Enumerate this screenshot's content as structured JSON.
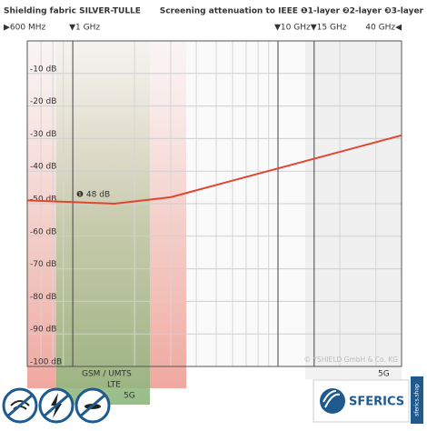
{
  "chart_data": {
    "type": "line",
    "title": "Shielding fabric SILVER-TULLE",
    "subtitle": "Screening attenuation to IEEE ❶1-layer ❷2-layer ❸3-layer",
    "x": [
      0.6,
      1.6,
      3,
      40
    ],
    "series": [
      {
        "name": "1-layer",
        "color": "#e2452e",
        "values": [
          -49,
          -50,
          -48,
          -29
        ]
      }
    ],
    "xlog": true,
    "xlim": [
      0.6,
      40
    ],
    "xticks": [
      {
        "value": 0.6,
        "label": "▶600 MHz"
      },
      {
        "value": 1,
        "label": "▼1 GHz"
      },
      {
        "value": 10,
        "label": "▼10 GHz"
      },
      {
        "value": 15,
        "label": "▼15 GHz"
      },
      {
        "value": 40,
        "label": "40 GHz◀"
      }
    ],
    "x_minor_ticks": [
      0.7,
      0.8,
      0.9,
      2,
      3,
      4,
      5,
      6,
      7,
      8,
      9,
      20,
      30
    ],
    "ylim": [
      -100,
      0
    ],
    "yticks": [
      {
        "value": -10,
        "label": "-10 dB"
      },
      {
        "value": -20,
        "label": "-20 dB"
      },
      {
        "value": -30,
        "label": "-30 dB"
      },
      {
        "value": -40,
        "label": "-40 dB"
      },
      {
        "value": -50,
        "label": "-50 dB"
      },
      {
        "value": -60,
        "label": "-60 dB"
      },
      {
        "value": -70,
        "label": "-70 dB"
      },
      {
        "value": -80,
        "label": "-80 dB"
      },
      {
        "value": -90,
        "label": "-90 dB"
      },
      {
        "value": -100,
        "label": "-100 dB"
      }
    ],
    "grid": true,
    "annotations": [
      "❶ 48 dB",
      "GSM / UMTS",
      "LTE",
      "5G",
      "5G",
      "© YSHIELD GmbH & Co. KG"
    ],
    "brand": "SFERICS",
    "brand_url": "sferics.shop"
  }
}
